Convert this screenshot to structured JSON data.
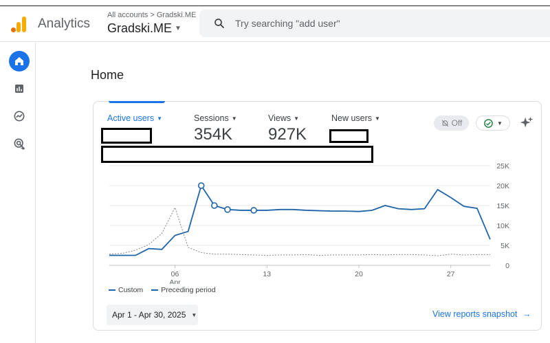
{
  "header": {
    "app_name": "Analytics",
    "account_path": "All accounts > Gradski.ME",
    "account_name": "Gradski.ME",
    "search_placeholder": "Try searching \"add user\""
  },
  "rail": {
    "items": [
      {
        "icon": "home-icon",
        "active": true
      },
      {
        "icon": "reports-icon",
        "active": false
      },
      {
        "icon": "explore-icon",
        "active": false
      },
      {
        "icon": "advertising-icon",
        "active": false
      }
    ]
  },
  "page": {
    "title": "Home"
  },
  "card": {
    "metrics": [
      {
        "label": "Active users",
        "value": "",
        "active": true
      },
      {
        "label": "Sessions",
        "value": "354K",
        "active": false
      },
      {
        "label": "Views",
        "value": "927K",
        "active": false
      },
      {
        "label": "New users",
        "value": "",
        "active": false
      }
    ],
    "insights_toggle": "Off",
    "legend": {
      "current": "Custom",
      "previous": "Preceding period"
    },
    "date_range": "Apr 1 - Apr 30, 2025",
    "snapshot_link": "View reports snapshot"
  },
  "colors": {
    "accent": "#1a73e8",
    "series": "#1f64a8",
    "previous": "#80868b"
  },
  "chart_data": {
    "type": "line",
    "x": [
      1,
      2,
      3,
      4,
      5,
      6,
      7,
      8,
      9,
      10,
      11,
      12,
      13,
      14,
      15,
      16,
      17,
      18,
      19,
      20,
      21,
      22,
      23,
      24,
      25,
      26,
      27,
      28,
      29,
      30
    ],
    "series": [
      {
        "name": "Custom",
        "style": "solid",
        "values": [
          2500,
          2500,
          2500,
          4200,
          4000,
          7500,
          8500,
          20000,
          15000,
          14000,
          13800,
          13800,
          13800,
          14000,
          14000,
          13800,
          13700,
          13600,
          13600,
          13500,
          13800,
          15000,
          14200,
          14000,
          14200,
          19000,
          17000,
          14800,
          14300,
          6500
        ],
        "markers": [
          8,
          9,
          10,
          12
        ]
      },
      {
        "name": "Preceding period",
        "style": "dashed",
        "values": [
          2800,
          3000,
          3800,
          5200,
          8000,
          14500,
          4500,
          3200,
          2800,
          2800,
          2700,
          2600,
          2500,
          2600,
          2600,
          2700,
          2500,
          2600,
          2600,
          2600,
          2700,
          2600,
          2700,
          2700,
          2600,
          2400,
          2800,
          2600,
          2700,
          2700
        ]
      }
    ],
    "x_ticks": [
      {
        "x": 6,
        "label": "06",
        "sublabel": "Apr"
      },
      {
        "x": 13,
        "label": "13",
        "sublabel": ""
      },
      {
        "x": 20,
        "label": "20",
        "sublabel": ""
      },
      {
        "x": 27,
        "label": "27",
        "sublabel": ""
      }
    ],
    "y_ticks": [
      0,
      5000,
      10000,
      15000,
      20000,
      25000
    ],
    "y_tick_labels": [
      "0",
      "5K",
      "10K",
      "15K",
      "20K",
      "25K"
    ],
    "ylim": [
      0,
      25000
    ],
    "xlim": [
      1,
      30
    ],
    "grid": true,
    "legend_position": "bottom-left"
  }
}
